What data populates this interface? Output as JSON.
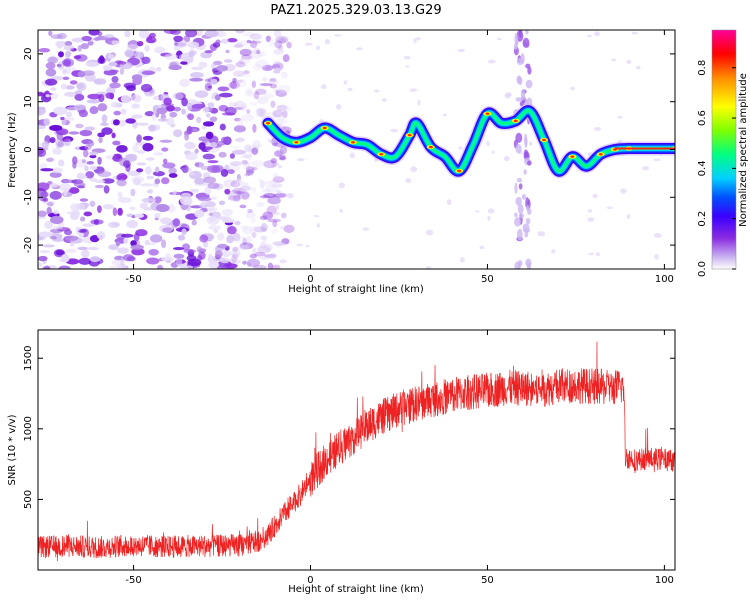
{
  "title": "PAZ1.2025.329.03.13.G29",
  "chart_data": [
    {
      "type": "heatmap",
      "xlabel": "Height of straight line (km)",
      "ylabel": "Frequency (Hz)",
      "xlim": [
        -77,
        103
      ],
      "ylim": [
        -25,
        25
      ],
      "xticks": [
        -50,
        0,
        50,
        100
      ],
      "yticks": [
        -20,
        -10,
        0,
        10,
        20
      ],
      "colorbar": {
        "label": "Normalized spectral amplitude",
        "range": [
          0,
          0.95
        ],
        "ticks": [
          "0.0",
          "0.2",
          "0.4",
          "0.6",
          "0.8"
        ],
        "colors": [
          "#ffffff",
          "#c9b3f0",
          "#8a2be2",
          "#3a00ff",
          "#0050ff",
          "#00d0ff",
          "#00ff80",
          "#7fff00",
          "#ffff00",
          "#ff8c00",
          "#ff0000",
          "#ff0099"
        ]
      },
      "ridge_frequency_hz": {
        "x_km": [
          -12,
          -8,
          -4,
          0,
          4,
          8,
          12,
          16,
          20,
          24,
          28,
          30,
          34,
          38,
          42,
          46,
          50,
          54,
          58,
          62,
          66,
          70,
          74,
          78,
          82,
          86,
          90,
          103
        ],
        "y_hz": [
          5.5,
          2.5,
          1.5,
          2.5,
          4.5,
          3.0,
          1.5,
          1.0,
          -1.0,
          -1.5,
          3.0,
          5.5,
          0.5,
          -1.5,
          -4.5,
          1.0,
          7.5,
          5.5,
          6.0,
          8.0,
          2.0,
          -4.5,
          -1.5,
          -3.5,
          -1.0,
          0.0,
          0.2,
          0.2
        ]
      },
      "noise_region_km": [
        -77,
        -10
      ],
      "vertical_artifact_km": 60
    },
    {
      "type": "line",
      "xlabel": "Height of straight line (km)",
      "ylabel": "SNR (10 * v/v)",
      "xlim": [
        -77,
        103
      ],
      "ylim": [
        0,
        1700
      ],
      "xticks": [
        -50,
        0,
        50,
        100
      ],
      "yticks": [
        500,
        1000,
        1500
      ],
      "color": "#ee2222",
      "series": [
        {
          "name": "SNR",
          "x": [
            -77,
            -70,
            -60,
            -50,
            -40,
            -30,
            -20,
            -15,
            -12,
            -8,
            -4,
            0,
            4,
            8,
            12,
            16,
            20,
            25,
            30,
            35,
            40,
            45,
            50,
            55,
            60,
            65,
            70,
            75,
            80,
            85,
            88.5,
            89,
            92,
            96,
            100,
            103
          ],
          "y": [
            160,
            170,
            160,
            175,
            165,
            170,
            175,
            200,
            250,
            380,
            500,
            640,
            770,
            860,
            940,
            1020,
            1080,
            1140,
            1180,
            1210,
            1240,
            1260,
            1270,
            1290,
            1290,
            1280,
            1300,
            1310,
            1300,
            1290,
            1300,
            800,
            780,
            790,
            780,
            780
          ],
          "noise_amplitude": 80
        }
      ]
    }
  ]
}
